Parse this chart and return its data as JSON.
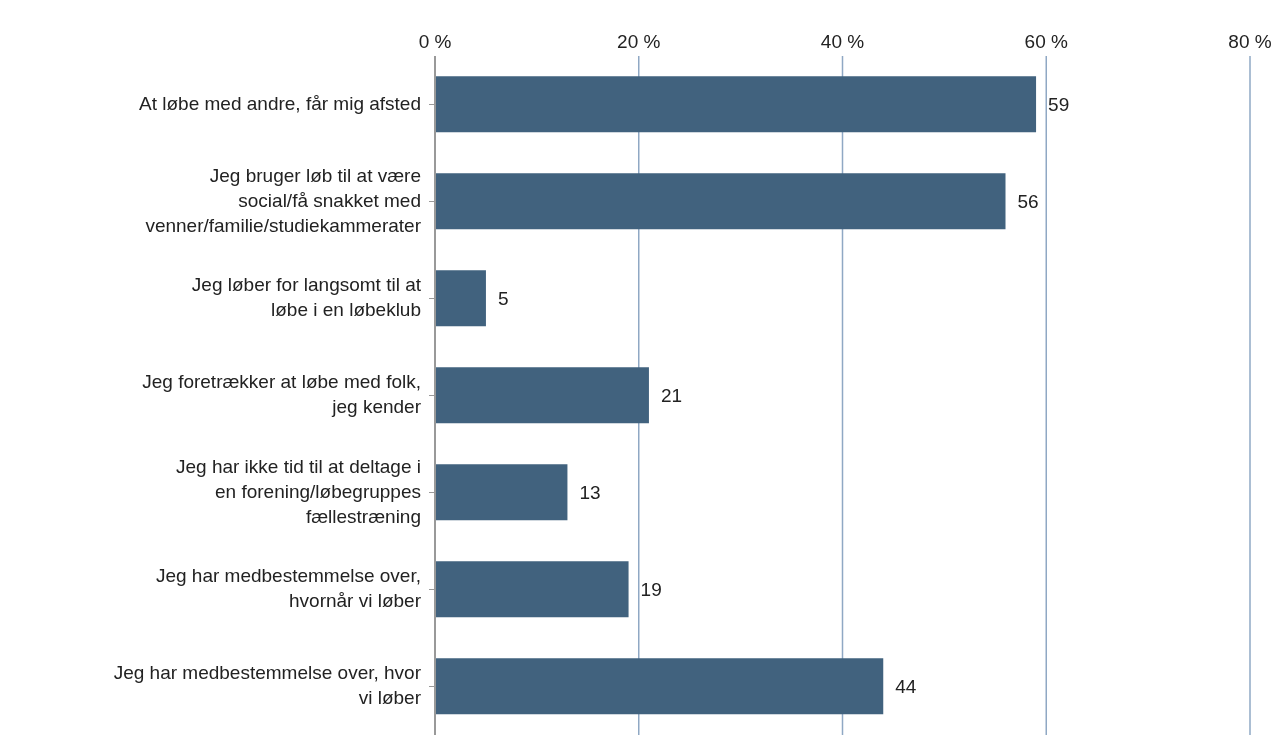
{
  "chart_data": {
    "type": "bar",
    "orientation": "horizontal",
    "categories": [
      "At løbe med andre, får mig afsted",
      "Jeg bruger løb til at være social/få snakket med venner/familie/studiekammerater",
      "Jeg løber for langsomt til at løbe i en løbeklub",
      "Jeg foretrækker at løbe med folk, jeg kender",
      "Jeg har ikke tid til at deltage i en forening/løbegruppes fællestræning",
      "Jeg har medbestemmelse over, hvornår vi løber",
      "Jeg har medbestemmelse over, hvor vi løber"
    ],
    "values": [
      59,
      56,
      5,
      21,
      13,
      19,
      44
    ],
    "color": "#41627e",
    "xlim": [
      0,
      80
    ],
    "xticks": [
      {
        "value": 0,
        "label": "0 %"
      },
      {
        "value": 20,
        "label": "20 %"
      },
      {
        "value": 40,
        "label": "40 %"
      },
      {
        "value": 60,
        "label": "60 %"
      },
      {
        "value": 80,
        "label": "80 %"
      }
    ],
    "grid": "x",
    "data_labels": true
  }
}
